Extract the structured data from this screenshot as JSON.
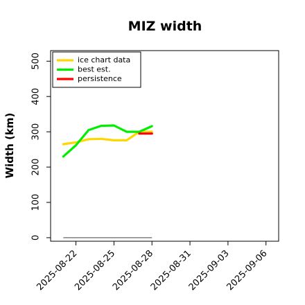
{
  "chart_data": {
    "type": "line",
    "title": "MIZ width",
    "ylabel": "Width (km)",
    "xlabel": "",
    "ylim": [
      -10,
      530
    ],
    "xlim": [
      "2025-08-20",
      "2025-09-07"
    ],
    "y_ticks": [
      "0",
      "100",
      "200",
      "300",
      "400",
      "500"
    ],
    "x_ticks": [
      "2025-08-22",
      "2025-08-25",
      "2025-08-28",
      "2025-08-31",
      "2025-09-03",
      "2025-09-06"
    ],
    "legend_position": "top-left",
    "series": [
      {
        "name": "ice chart data",
        "color": "#ffd700",
        "points": [
          {
            "x": "2025-08-21",
            "y": 265
          },
          {
            "x": "2025-08-22",
            "y": 270
          },
          {
            "x": "2025-08-23",
            "y": 279
          },
          {
            "x": "2025-08-24",
            "y": 280
          },
          {
            "x": "2025-08-25",
            "y": 276
          },
          {
            "x": "2025-08-26",
            "y": 276
          },
          {
            "x": "2025-08-27",
            "y": 300
          },
          {
            "x": "2025-08-28",
            "y": 300
          }
        ]
      },
      {
        "name": "best est.",
        "color": "#00ee00",
        "points": [
          {
            "x": "2025-08-21",
            "y": 230
          },
          {
            "x": "2025-08-22",
            "y": 262
          },
          {
            "x": "2025-08-23",
            "y": 305
          },
          {
            "x": "2025-08-24",
            "y": 317
          },
          {
            "x": "2025-08-25",
            "y": 318
          },
          {
            "x": "2025-08-26",
            "y": 300
          },
          {
            "x": "2025-08-27",
            "y": 300
          },
          {
            "x": "2025-08-28",
            "y": 316
          }
        ]
      },
      {
        "name": "persistence",
        "color": "#ff0000",
        "points": [
          {
            "x": "2025-08-27",
            "y": 295
          },
          {
            "x": "2025-08-28",
            "y": 295
          }
        ]
      }
    ],
    "baseline": {
      "color": "#808080",
      "points": [
        {
          "x": "2025-08-21",
          "y": 0
        },
        {
          "x": "2025-08-28",
          "y": 0
        }
      ]
    }
  }
}
